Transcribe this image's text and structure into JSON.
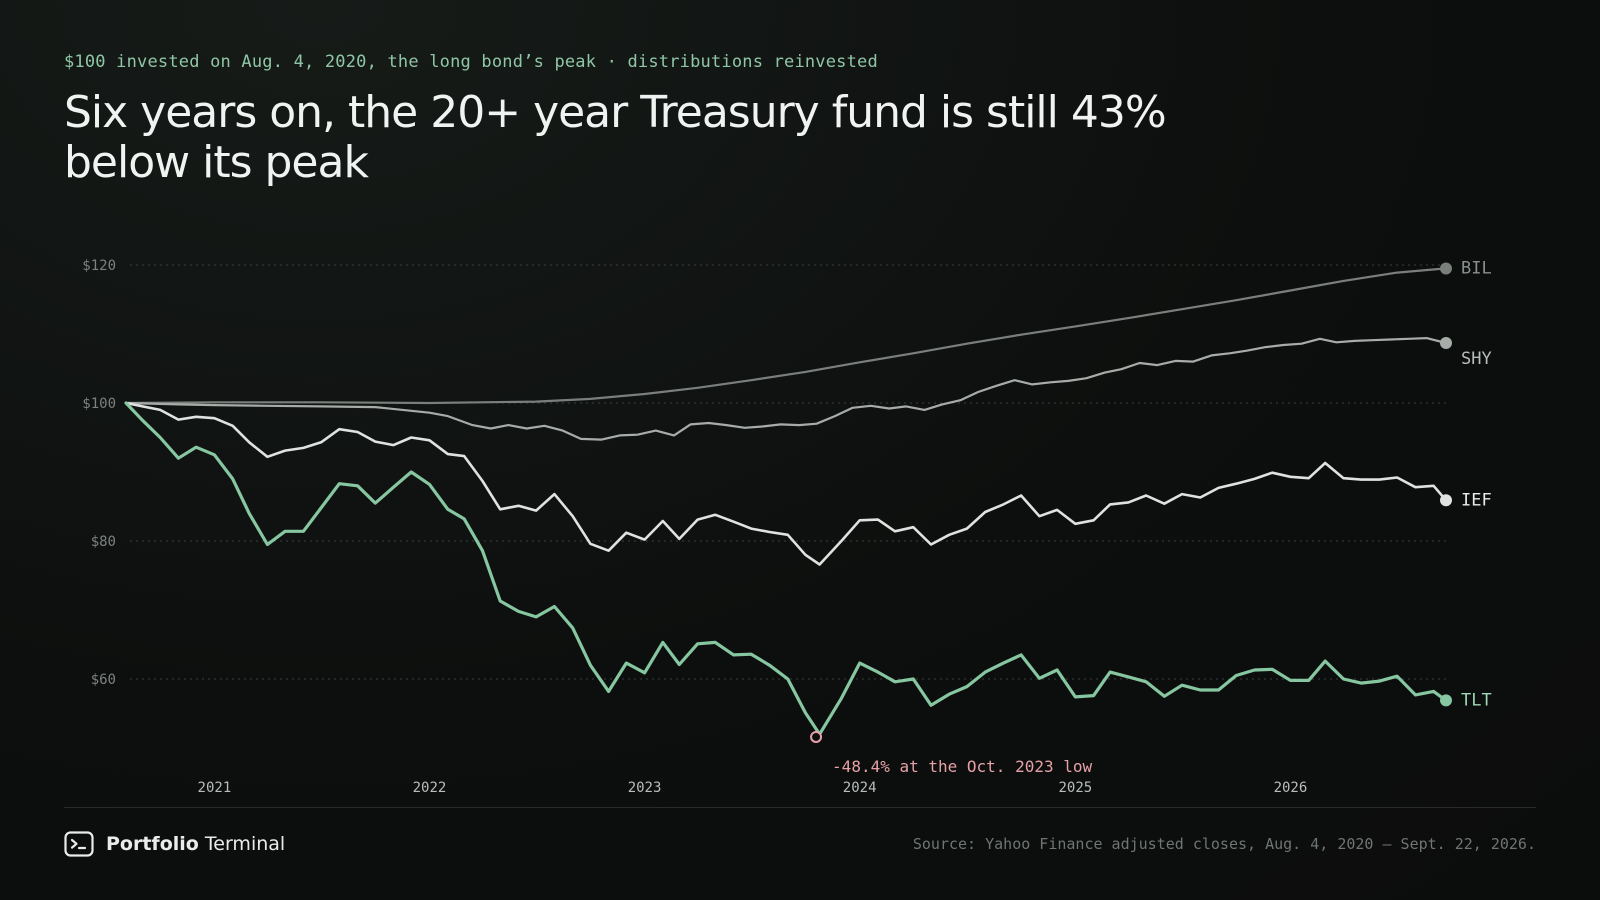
{
  "kicker": "$100 invested on Aug. 4, 2020, the long bond’s peak · distributions reinvested",
  "headline": "Six years on, the 20+ year Treasury fund is still 43% below its peak",
  "brand": {
    "name_bold": "Portfolio",
    "name_regular": "Terminal",
    "icon": "terminal-prompt-icon"
  },
  "source": "Source: Yahoo Finance adjusted closes, Aug. 4, 2020 – Sept. 22, 2026.",
  "chart_data": {
    "type": "line",
    "title": "Six years on, the 20+ year Treasury fund is still 43% below its peak",
    "x_start": "2020-08-04",
    "x_end": "2026-09-22",
    "x_ticks": [
      {
        "date": "2021-01-01",
        "label": "2021"
      },
      {
        "date": "2022-01-01",
        "label": "2022"
      },
      {
        "date": "2023-01-01",
        "label": "2023"
      },
      {
        "date": "2024-01-01",
        "label": "2024"
      },
      {
        "date": "2025-01-01",
        "label": "2025"
      },
      {
        "date": "2026-01-01",
        "label": "2026"
      }
    ],
    "y_ticks": [
      {
        "value": 120,
        "label": "$120"
      },
      {
        "value": 100,
        "label": "$100"
      },
      {
        "value": 80,
        "label": "$80"
      },
      {
        "value": 60,
        "label": "$60"
      }
    ],
    "ylim": [
      45,
      125
    ],
    "grid": true,
    "series": [
      {
        "name": "BIL",
        "color": "#7a7f7c",
        "label_color": "#8a8f8c",
        "values": [
          [
            "2020-08-04",
            100.0
          ],
          [
            "2021-01-01",
            100.1
          ],
          [
            "2021-07-01",
            100.1
          ],
          [
            "2022-01-01",
            100.0
          ],
          [
            "2022-07-01",
            100.2
          ],
          [
            "2022-10-01",
            100.6
          ],
          [
            "2023-01-01",
            101.3
          ],
          [
            "2023-04-01",
            102.2
          ],
          [
            "2023-07-01",
            103.3
          ],
          [
            "2023-10-01",
            104.5
          ],
          [
            "2024-01-01",
            105.9
          ],
          [
            "2024-04-01",
            107.2
          ],
          [
            "2024-07-01",
            108.6
          ],
          [
            "2024-10-01",
            109.9
          ],
          [
            "2025-01-01",
            111.1
          ],
          [
            "2025-04-01",
            112.3
          ],
          [
            "2025-07-01",
            113.6
          ],
          [
            "2025-10-01",
            114.9
          ],
          [
            "2026-01-01",
            116.3
          ],
          [
            "2026-04-01",
            117.7
          ],
          [
            "2026-07-01",
            118.9
          ],
          [
            "2026-09-22",
            119.5
          ]
        ]
      },
      {
        "name": "SHY",
        "color": "#a7aca9",
        "label_color": "#b8bdba",
        "values": [
          [
            "2020-08-04",
            100.0
          ],
          [
            "2020-09-15",
            99.9
          ],
          [
            "2020-11-01",
            99.8
          ],
          [
            "2021-01-01",
            99.7
          ],
          [
            "2021-04-01",
            99.6
          ],
          [
            "2021-07-01",
            99.5
          ],
          [
            "2021-10-01",
            99.4
          ],
          [
            "2022-01-01",
            98.6
          ],
          [
            "2022-02-01",
            98.1
          ],
          [
            "2022-03-15",
            96.8
          ],
          [
            "2022-04-15",
            96.3
          ],
          [
            "2022-05-15",
            96.8
          ],
          [
            "2022-06-15",
            96.3
          ],
          [
            "2022-07-15",
            96.7
          ],
          [
            "2022-08-15",
            96.0
          ],
          [
            "2022-09-15",
            94.8
          ],
          [
            "2022-10-20",
            94.7
          ],
          [
            "2022-11-20",
            95.3
          ],
          [
            "2022-12-20",
            95.4
          ],
          [
            "2023-01-20",
            96.0
          ],
          [
            "2023-02-20",
            95.3
          ],
          [
            "2023-03-20",
            96.9
          ],
          [
            "2023-04-20",
            97.1
          ],
          [
            "2023-05-20",
            96.8
          ],
          [
            "2023-06-20",
            96.4
          ],
          [
            "2023-07-20",
            96.6
          ],
          [
            "2023-08-20",
            96.9
          ],
          [
            "2023-09-20",
            96.8
          ],
          [
            "2023-10-20",
            97.0
          ],
          [
            "2023-11-20",
            98.1
          ],
          [
            "2023-12-20",
            99.3
          ],
          [
            "2024-01-20",
            99.6
          ],
          [
            "2024-02-20",
            99.2
          ],
          [
            "2024-03-20",
            99.5
          ],
          [
            "2024-04-20",
            99.0
          ],
          [
            "2024-05-20",
            99.8
          ],
          [
            "2024-06-20",
            100.4
          ],
          [
            "2024-07-20",
            101.6
          ],
          [
            "2024-08-20",
            102.5
          ],
          [
            "2024-09-20",
            103.3
          ],
          [
            "2024-10-20",
            102.7
          ],
          [
            "2024-11-20",
            103.0
          ],
          [
            "2024-12-20",
            103.2
          ],
          [
            "2025-01-20",
            103.6
          ],
          [
            "2025-02-20",
            104.4
          ],
          [
            "2025-03-20",
            104.9
          ],
          [
            "2025-04-20",
            105.8
          ],
          [
            "2025-05-20",
            105.5
          ],
          [
            "2025-06-20",
            106.1
          ],
          [
            "2025-07-20",
            106.0
          ],
          [
            "2025-08-20",
            106.9
          ],
          [
            "2025-09-20",
            107.2
          ],
          [
            "2025-10-20",
            107.6
          ],
          [
            "2025-11-20",
            108.1
          ],
          [
            "2025-12-20",
            108.4
          ],
          [
            "2026-01-20",
            108.6
          ],
          [
            "2026-02-20",
            109.3
          ],
          [
            "2026-03-20",
            108.8
          ],
          [
            "2026-04-20",
            109.0
          ],
          [
            "2026-05-20",
            109.1
          ],
          [
            "2026-06-20",
            109.2
          ],
          [
            "2026-07-20",
            109.3
          ],
          [
            "2026-08-20",
            109.4
          ],
          [
            "2026-09-22",
            108.7
          ]
        ]
      },
      {
        "name": "IEF",
        "color": "#dfe2e0",
        "label_color": "#e9ecea",
        "values": [
          [
            "2020-08-04",
            100.0
          ],
          [
            "2020-09-01",
            99.5
          ],
          [
            "2020-10-01",
            99.0
          ],
          [
            "2020-11-01",
            97.6
          ],
          [
            "2020-12-01",
            98.0
          ],
          [
            "2021-01-01",
            97.8
          ],
          [
            "2021-02-01",
            96.7
          ],
          [
            "2021-03-01",
            94.3
          ],
          [
            "2021-04-01",
            92.2
          ],
          [
            "2021-05-01",
            93.1
          ],
          [
            "2021-06-01",
            93.5
          ],
          [
            "2021-07-01",
            94.3
          ],
          [
            "2021-08-01",
            96.2
          ],
          [
            "2021-09-01",
            95.8
          ],
          [
            "2021-10-01",
            94.4
          ],
          [
            "2021-11-01",
            93.9
          ],
          [
            "2021-12-01",
            95.0
          ],
          [
            "2022-01-01",
            94.6
          ],
          [
            "2022-02-01",
            92.6
          ],
          [
            "2022-03-01",
            92.3
          ],
          [
            "2022-04-01",
            88.7
          ],
          [
            "2022-05-01",
            84.6
          ],
          [
            "2022-06-01",
            85.1
          ],
          [
            "2022-07-01",
            84.4
          ],
          [
            "2022-08-01",
            86.8
          ],
          [
            "2022-09-01",
            83.6
          ],
          [
            "2022-10-01",
            79.6
          ],
          [
            "2022-11-01",
            78.6
          ],
          [
            "2022-12-01",
            81.2
          ],
          [
            "2023-01-01",
            80.2
          ],
          [
            "2023-02-01",
            82.9
          ],
          [
            "2023-03-01",
            80.3
          ],
          [
            "2023-04-01",
            83.1
          ],
          [
            "2023-05-01",
            83.8
          ],
          [
            "2023-06-01",
            82.8
          ],
          [
            "2023-07-01",
            81.8
          ],
          [
            "2023-08-01",
            81.3
          ],
          [
            "2023-09-01",
            80.9
          ],
          [
            "2023-10-01",
            78.0
          ],
          [
            "2023-10-25",
            76.6
          ],
          [
            "2023-12-01",
            80.0
          ],
          [
            "2024-01-01",
            83.0
          ],
          [
            "2024-02-01",
            83.1
          ],
          [
            "2024-03-01",
            81.4
          ],
          [
            "2024-04-01",
            82.0
          ],
          [
            "2024-05-01",
            79.5
          ],
          [
            "2024-06-01",
            80.9
          ],
          [
            "2024-07-01",
            81.8
          ],
          [
            "2024-08-01",
            84.2
          ],
          [
            "2024-09-01",
            85.3
          ],
          [
            "2024-10-01",
            86.6
          ],
          [
            "2024-11-01",
            83.6
          ],
          [
            "2024-12-01",
            84.5
          ],
          [
            "2025-01-01",
            82.5
          ],
          [
            "2025-02-01",
            83.0
          ],
          [
            "2025-03-01",
            85.3
          ],
          [
            "2025-04-01",
            85.6
          ],
          [
            "2025-05-01",
            86.6
          ],
          [
            "2025-06-01",
            85.4
          ],
          [
            "2025-07-01",
            86.8
          ],
          [
            "2025-08-01",
            86.3
          ],
          [
            "2025-09-01",
            87.7
          ],
          [
            "2025-10-01",
            88.3
          ],
          [
            "2025-11-01",
            89.0
          ],
          [
            "2025-12-01",
            89.9
          ],
          [
            "2026-01-01",
            89.3
          ],
          [
            "2026-02-01",
            89.1
          ],
          [
            "2026-03-01",
            91.3
          ],
          [
            "2026-04-01",
            89.1
          ],
          [
            "2026-05-01",
            88.9
          ],
          [
            "2026-06-01",
            88.9
          ],
          [
            "2026-07-01",
            89.2
          ],
          [
            "2026-08-01",
            87.8
          ],
          [
            "2026-09-01",
            88.0
          ],
          [
            "2026-09-22",
            85.9
          ]
        ]
      },
      {
        "name": "TLT",
        "color": "#86c6a0",
        "label_color": "#9fd6b4",
        "values": [
          [
            "2020-08-04",
            100.0
          ],
          [
            "2020-09-01",
            97.5
          ],
          [
            "2020-10-01",
            95.0
          ],
          [
            "2020-11-01",
            92.0
          ],
          [
            "2020-12-01",
            93.6
          ],
          [
            "2021-01-01",
            92.5
          ],
          [
            "2021-02-01",
            89.0
          ],
          [
            "2021-03-01",
            84.0
          ],
          [
            "2021-04-01",
            79.5
          ],
          [
            "2021-05-01",
            81.4
          ],
          [
            "2021-06-01",
            81.4
          ],
          [
            "2021-07-01",
            84.8
          ],
          [
            "2021-08-01",
            88.3
          ],
          [
            "2021-09-01",
            88.0
          ],
          [
            "2021-10-01",
            85.5
          ],
          [
            "2021-11-01",
            87.8
          ],
          [
            "2021-12-01",
            90.0
          ],
          [
            "2022-01-01",
            88.2
          ],
          [
            "2022-02-01",
            84.6
          ],
          [
            "2022-03-01",
            83.2
          ],
          [
            "2022-04-01",
            78.6
          ],
          [
            "2022-05-01",
            71.3
          ],
          [
            "2022-06-01",
            69.8
          ],
          [
            "2022-07-01",
            69.0
          ],
          [
            "2022-08-01",
            70.5
          ],
          [
            "2022-09-01",
            67.4
          ],
          [
            "2022-10-01",
            62.0
          ],
          [
            "2022-11-01",
            58.2
          ],
          [
            "2022-12-01",
            62.3
          ],
          [
            "2023-01-01",
            60.9
          ],
          [
            "2023-02-01",
            65.3
          ],
          [
            "2023-03-01",
            62.1
          ],
          [
            "2023-04-01",
            65.1
          ],
          [
            "2023-05-01",
            65.3
          ],
          [
            "2023-06-01",
            63.5
          ],
          [
            "2023-07-01",
            63.6
          ],
          [
            "2023-08-01",
            62.0
          ],
          [
            "2023-09-01",
            60.0
          ],
          [
            "2023-10-01",
            55.1
          ],
          [
            "2023-10-25",
            52.0
          ],
          [
            "2023-12-01",
            57.2
          ],
          [
            "2024-01-01",
            62.3
          ],
          [
            "2024-02-01",
            61.0
          ],
          [
            "2024-03-01",
            59.6
          ],
          [
            "2024-04-01",
            60.0
          ],
          [
            "2024-05-01",
            56.2
          ],
          [
            "2024-06-01",
            57.8
          ],
          [
            "2024-07-01",
            58.9
          ],
          [
            "2024-08-01",
            61.0
          ],
          [
            "2024-09-01",
            62.3
          ],
          [
            "2024-10-01",
            63.5
          ],
          [
            "2024-11-01",
            60.1
          ],
          [
            "2024-12-01",
            61.3
          ],
          [
            "2025-01-01",
            57.4
          ],
          [
            "2025-02-01",
            57.6
          ],
          [
            "2025-03-01",
            61.0
          ],
          [
            "2025-04-01",
            60.3
          ],
          [
            "2025-05-01",
            59.6
          ],
          [
            "2025-06-01",
            57.5
          ],
          [
            "2025-07-01",
            59.1
          ],
          [
            "2025-08-01",
            58.4
          ],
          [
            "2025-09-01",
            58.4
          ],
          [
            "2025-10-01",
            60.5
          ],
          [
            "2025-11-01",
            61.3
          ],
          [
            "2025-12-01",
            61.4
          ],
          [
            "2026-01-01",
            59.8
          ],
          [
            "2026-02-01",
            59.8
          ],
          [
            "2026-03-01",
            62.6
          ],
          [
            "2026-04-01",
            60.0
          ],
          [
            "2026-05-01",
            59.4
          ],
          [
            "2026-06-01",
            59.7
          ],
          [
            "2026-07-01",
            60.4
          ],
          [
            "2026-08-01",
            57.7
          ],
          [
            "2026-09-01",
            58.2
          ],
          [
            "2026-09-22",
            56.9
          ]
        ]
      }
    ],
    "annotation": {
      "text": "-48.4% at the Oct. 2023 low",
      "date": "2023-10-19",
      "value": 51.6,
      "color": "#e5a1a6"
    },
    "colors": {
      "grid": "#3a3e3c",
      "tick_label": "#7d827f",
      "x_tick_label": "#b8bdba"
    }
  }
}
